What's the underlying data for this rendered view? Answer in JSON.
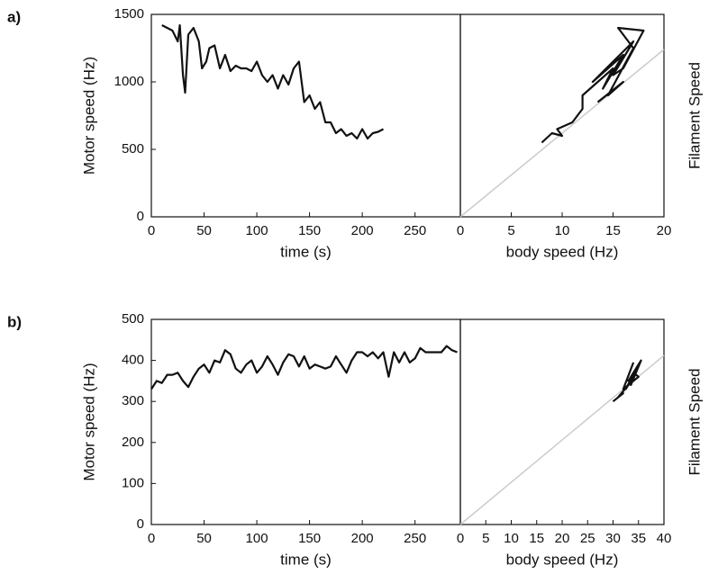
{
  "chart_data": [
    {
      "type": "line",
      "panel_label": "a)",
      "xlabel": "time (s)",
      "ylabel": "Motor speed (Hz)",
      "xlim": [
        0,
        293
      ],
      "xticks": [
        0,
        50,
        100,
        150,
        200,
        250
      ],
      "ylim": [
        0,
        1500
      ],
      "yticks": [
        0,
        500,
        1000,
        1500
      ],
      "series": [
        {
          "color": "#111111",
          "x": [
            10,
            15,
            20,
            25,
            27,
            30,
            32,
            35,
            40,
            45,
            48,
            52,
            55,
            60,
            65,
            70,
            75,
            80,
            85,
            90,
            95,
            100,
            105,
            110,
            115,
            120,
            125,
            130,
            135,
            140,
            145,
            150,
            155,
            160,
            165,
            170,
            175,
            180,
            185,
            190,
            195,
            200,
            205,
            210,
            215,
            220
          ],
          "values": [
            1420,
            1400,
            1380,
            1300,
            1420,
            1050,
            920,
            1350,
            1400,
            1300,
            1100,
            1150,
            1250,
            1270,
            1100,
            1200,
            1080,
            1120,
            1100,
            1100,
            1080,
            1150,
            1050,
            1000,
            1050,
            950,
            1050,
            980,
            1100,
            1150,
            850,
            900,
            800,
            850,
            700,
            700,
            620,
            650,
            600,
            620,
            580,
            650,
            580,
            620,
            630,
            650
          ]
        }
      ]
    },
    {
      "type": "line",
      "ylabel": "Filament Speed",
      "xlabel": "body speed (Hz)",
      "xlim": [
        0,
        20
      ],
      "xticks": [
        0,
        5,
        10,
        15,
        20
      ],
      "ylim": [
        0,
        1500
      ],
      "series": [
        {
          "color": "#cccccc",
          "x": [
            0,
            20
          ],
          "values": [
            0,
            1240
          ]
        },
        {
          "color": "#111111",
          "x": [
            8,
            9,
            10,
            9.5,
            11,
            12,
            12,
            15,
            14,
            16,
            13,
            17,
            15,
            16,
            18,
            15.5,
            17,
            14.5,
            16,
            13.5
          ],
          "values": [
            550,
            620,
            600,
            650,
            700,
            800,
            900,
            1100,
            950,
            1200,
            1000,
            1300,
            1050,
            1100,
            1380,
            1400,
            1250,
            900,
            1000,
            850
          ]
        }
      ]
    },
    {
      "type": "line",
      "panel_label": "b)",
      "xlabel": "time (s)",
      "ylabel": "Motor speed (Hz)",
      "xlim": [
        0,
        293
      ],
      "xticks": [
        0,
        50,
        100,
        150,
        200,
        250
      ],
      "ylim": [
        0,
        500
      ],
      "yticks": [
        0,
        100,
        200,
        300,
        400,
        500
      ],
      "series": [
        {
          "color": "#111111",
          "x": [
            0,
            5,
            10,
            15,
            20,
            25,
            30,
            35,
            40,
            45,
            50,
            55,
            60,
            65,
            70,
            75,
            80,
            85,
            90,
            95,
            100,
            105,
            110,
            115,
            120,
            125,
            130,
            135,
            140,
            145,
            150,
            155,
            160,
            165,
            170,
            175,
            180,
            185,
            190,
            195,
            200,
            205,
            210,
            215,
            220,
            225,
            230,
            235,
            240,
            245,
            250,
            255,
            260,
            265,
            270,
            275,
            280,
            285,
            290
          ],
          "values": [
            330,
            350,
            345,
            365,
            365,
            370,
            350,
            335,
            360,
            380,
            390,
            370,
            400,
            395,
            425,
            415,
            380,
            370,
            390,
            400,
            370,
            385,
            410,
            390,
            365,
            395,
            415,
            410,
            385,
            410,
            380,
            390,
            385,
            380,
            385,
            410,
            390,
            370,
            400,
            420,
            420,
            410,
            420,
            405,
            420,
            360,
            420,
            395,
            420,
            395,
            405,
            430,
            420,
            420,
            420,
            420,
            435,
            425,
            420
          ]
        }
      ]
    },
    {
      "type": "line",
      "ylabel": "Filament Speed",
      "xlabel": "body speed (Hz)",
      "xlim": [
        0,
        40
      ],
      "xticks": [
        0,
        5,
        10,
        15,
        20,
        25,
        30,
        35,
        40
      ],
      "ylim": [
        0,
        500
      ],
      "series": [
        {
          "color": "#cccccc",
          "x": [
            0,
            40
          ],
          "values": [
            0,
            412
          ]
        },
        {
          "color": "#111111",
          "x": [
            30,
            32,
            31,
            33,
            34,
            32.5,
            35,
            33,
            34.5,
            35.5,
            33.5,
            34,
            35,
            32,
            34
          ],
          "values": [
            300,
            320,
            310,
            340,
            360,
            330,
            390,
            350,
            380,
            400,
            340,
            370,
            360,
            330,
            395
          ]
        }
      ]
    }
  ]
}
